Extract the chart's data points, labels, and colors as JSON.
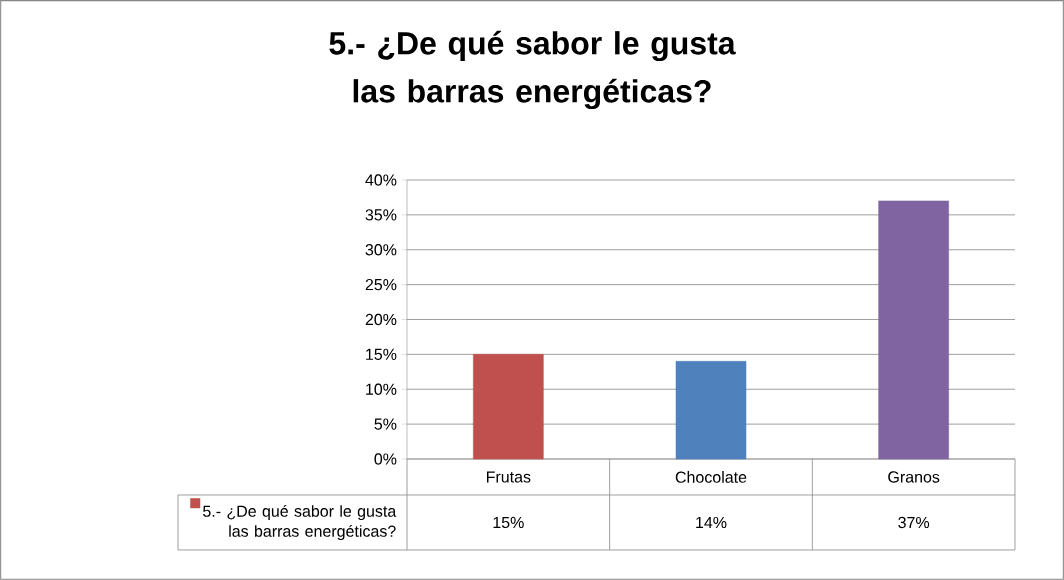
{
  "chart_data": {
    "type": "bar",
    "title": "5.- ¿De qué sabor le gusta las barras energéticas?",
    "categories": [
      "Frutas",
      "Chocolate",
      "Granos"
    ],
    "series": [
      {
        "name": "5.- ¿De qué sabor le gusta las barras energéticas?",
        "colors": [
          "#c0504d",
          "#4f81bd",
          "#8064a2"
        ],
        "values": [
          15,
          14,
          37
        ],
        "value_labels": [
          "15%",
          "14%",
          "37%"
        ]
      }
    ],
    "ylim": [
      0,
      40
    ],
    "yticks": [
      {
        "value": 0,
        "label": "0%"
      },
      {
        "value": 5,
        "label": "5%"
      },
      {
        "value": 10,
        "label": "10%"
      },
      {
        "value": 15,
        "label": "15%"
      },
      {
        "value": 20,
        "label": "20%"
      },
      {
        "value": 25,
        "label": "25%"
      },
      {
        "value": 30,
        "label": "30%"
      },
      {
        "value": 35,
        "label": "35%"
      },
      {
        "value": 40,
        "label": "40%"
      }
    ],
    "grid": "y"
  }
}
